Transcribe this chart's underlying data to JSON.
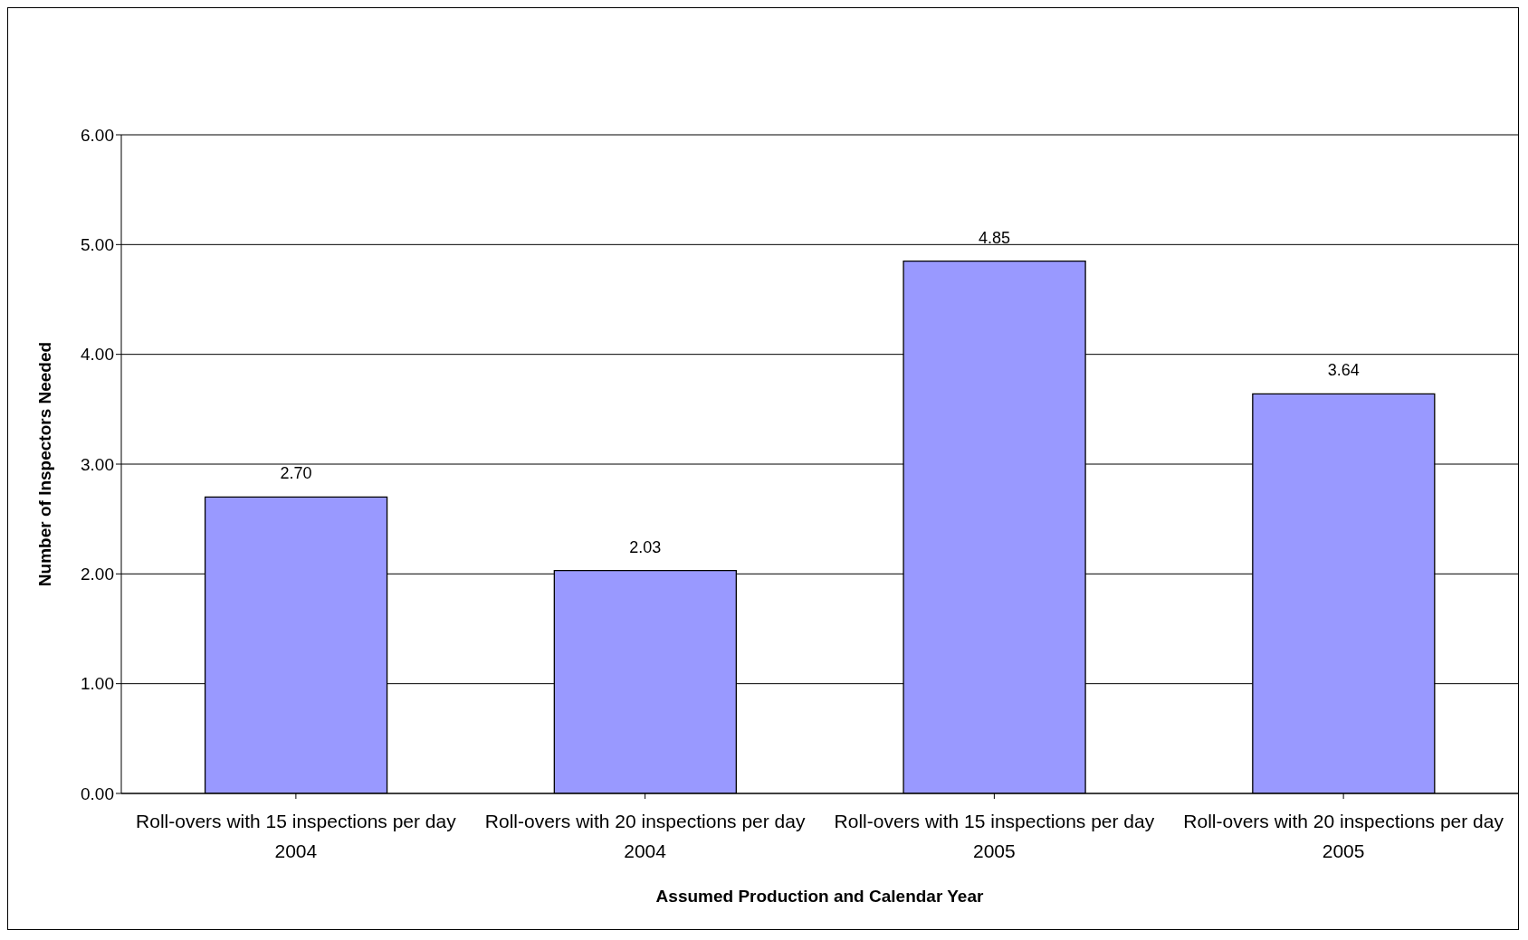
{
  "chart_data": {
    "type": "bar",
    "xlabel": "Assumed Production and Calendar Year",
    "ylabel": "Number of Inspectors Needed",
    "categories": [
      "Roll-overs with 15 inspections per day 2004",
      "Roll-overs with 20 inspections per day 2004",
      "Roll-overs with 15 inspections per day 2005",
      "Roll-overs with 20 inspections per day 2005"
    ],
    "values": [
      2.7,
      2.03,
      4.85,
      3.64
    ],
    "value_labels": [
      "2.70",
      "2.03",
      "4.85",
      "3.64"
    ],
    "color": "#9999ff",
    "ylim": [
      0,
      6
    ],
    "yticks": [
      {
        "value": 0,
        "label": "0.00"
      },
      {
        "value": 1,
        "label": "1.00"
      },
      {
        "value": 2,
        "label": "2.00"
      },
      {
        "value": 3,
        "label": "3.00"
      },
      {
        "value": 4,
        "label": "4.00"
      },
      {
        "value": 5,
        "label": "5.00"
      },
      {
        "value": 6,
        "label": "6.00"
      }
    ],
    "grid": "y",
    "legend": false
  }
}
